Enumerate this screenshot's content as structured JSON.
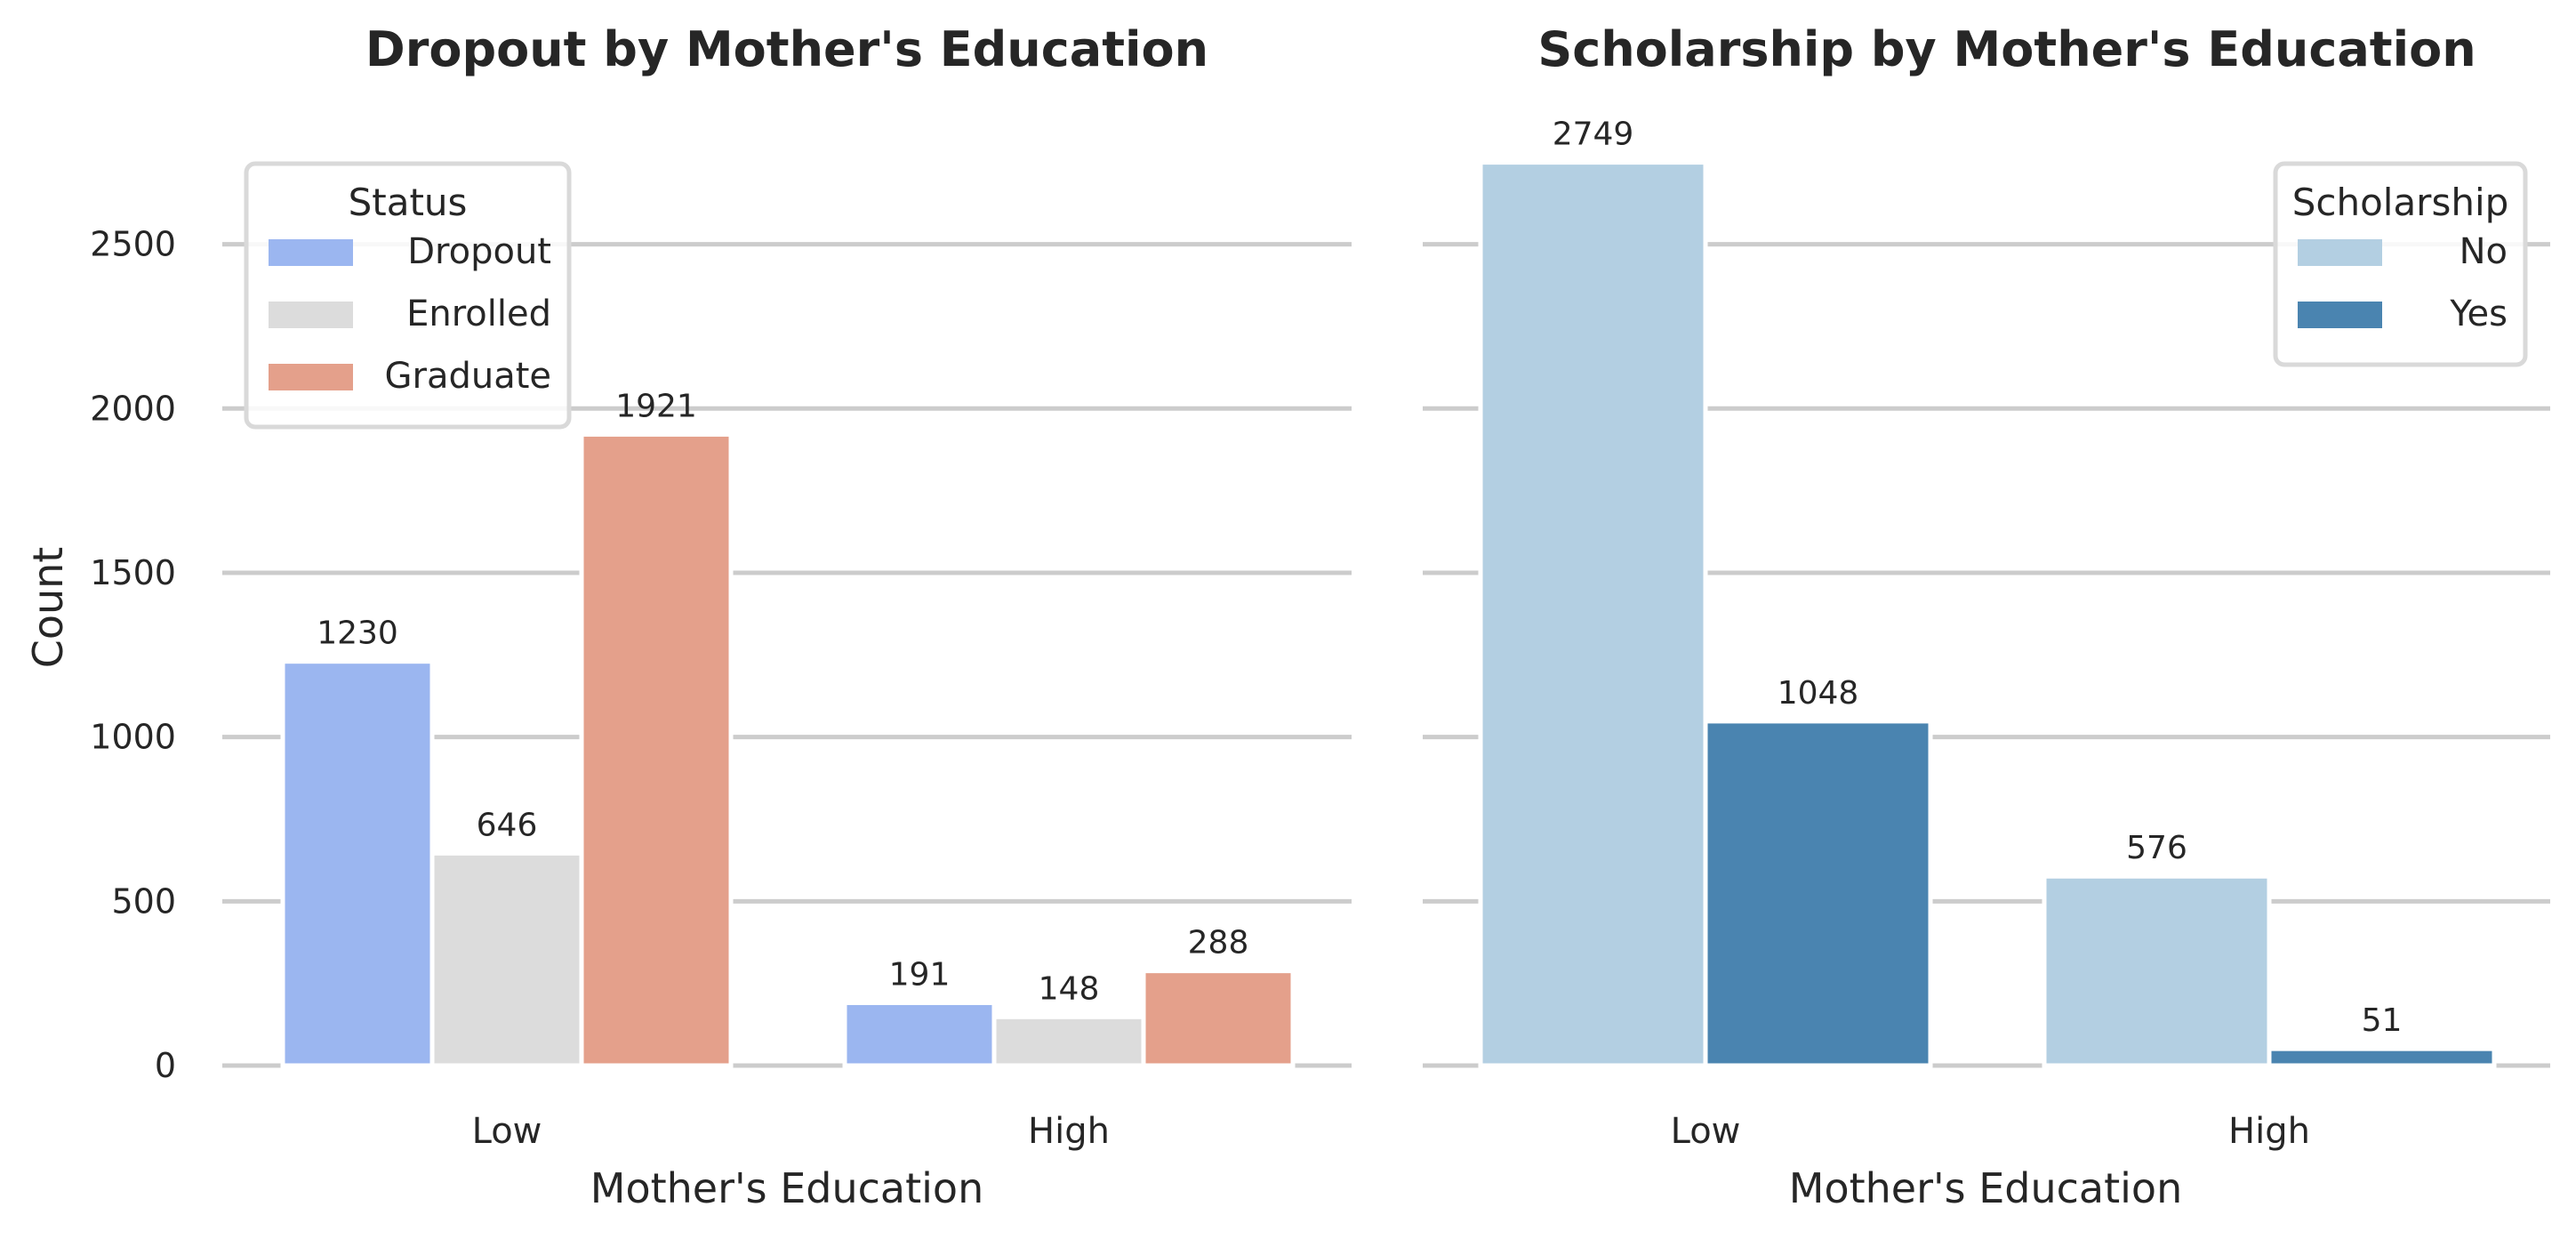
{
  "chart_data": [
    {
      "type": "bar",
      "title": "Dropout by Mother's Education",
      "xlabel": "Mother's Education",
      "ylabel": "Count",
      "categories": [
        "Low",
        "High"
      ],
      "series": [
        {
          "name": "Dropout",
          "color": "#9bb6f0",
          "values": [
            1230,
            191
          ]
        },
        {
          "name": "Enrolled",
          "color": "#dcdcdc",
          "values": [
            646,
            148
          ]
        },
        {
          "name": "Graduate",
          "color": "#e4a08b",
          "values": [
            1921,
            288
          ]
        }
      ],
      "data_labels": [
        [
          "1230",
          "191"
        ],
        [
          "646",
          "148"
        ],
        [
          "1921",
          "288"
        ]
      ],
      "yticks": [
        0,
        500,
        1000,
        1500,
        2000,
        2500
      ],
      "ytick_labels": [
        "0",
        "500",
        "1000",
        "1500",
        "2000",
        "2500"
      ],
      "ylim": [
        0,
        2886
      ],
      "grid": "horizontal",
      "legend": {
        "title": "Status",
        "placement": "top-left"
      }
    },
    {
      "type": "bar",
      "title": "Scholarship by Mother's Education",
      "xlabel": "Mother's Education",
      "ylabel": "",
      "categories": [
        "Low",
        "High"
      ],
      "series": [
        {
          "name": "No",
          "color": "#b3cfe2",
          "values": [
            2749,
            576
          ]
        },
        {
          "name": "Yes",
          "color": "#4a84b0",
          "values": [
            1048,
            51
          ]
        }
      ],
      "data_labels": [
        [
          "2749",
          "576"
        ],
        [
          "1048",
          "51"
        ]
      ],
      "yticks": [
        0,
        500,
        1000,
        1500,
        2000,
        2500
      ],
      "ylim": [
        0,
        2886
      ],
      "grid": "horizontal",
      "legend": {
        "title": "Scholarship",
        "placement": "top-right"
      }
    }
  ]
}
